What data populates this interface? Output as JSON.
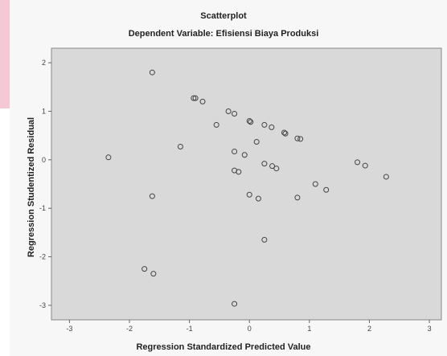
{
  "chart_data": {
    "type": "scatter",
    "title": "Scatterplot",
    "subtitle": "Dependent Variable: Efisiensi Biaya Produksi",
    "xlabel": "Regression Standardized Predicted Value",
    "ylabel": "Regression Studentized Residual",
    "xlim": [
      -3.3,
      3.2
    ],
    "ylim": [
      -3.3,
      2.3
    ],
    "xticks": [
      -3,
      -2,
      -1,
      0,
      1,
      2,
      3
    ],
    "yticks": [
      -3,
      -2,
      -1,
      0,
      1,
      2
    ],
    "grid": false,
    "colors": {
      "plot_bg": "#d9d9d9",
      "marker": "#444444",
      "outer_bg": "#f7f7f7",
      "band": "#f4c9d5"
    },
    "points": [
      {
        "x": -2.35,
        "y": 0.05
      },
      {
        "x": -1.62,
        "y": 1.8
      },
      {
        "x": -1.62,
        "y": -0.75
      },
      {
        "x": -1.75,
        "y": -2.25
      },
      {
        "x": -1.6,
        "y": -2.35
      },
      {
        "x": -1.15,
        "y": 0.27
      },
      {
        "x": -0.93,
        "y": 1.27
      },
      {
        "x": -0.9,
        "y": 1.27
      },
      {
        "x": -0.78,
        "y": 1.2
      },
      {
        "x": -0.55,
        "y": 0.72
      },
      {
        "x": -0.35,
        "y": 1.0
      },
      {
        "x": -0.25,
        "y": 0.95
      },
      {
        "x": -0.25,
        "y": 0.17
      },
      {
        "x": -0.25,
        "y": -0.22
      },
      {
        "x": -0.18,
        "y": -0.25
      },
      {
        "x": -0.08,
        "y": 0.1
      },
      {
        "x": 0.0,
        "y": 0.8
      },
      {
        "x": 0.02,
        "y": 0.78
      },
      {
        "x": 0.0,
        "y": -0.72
      },
      {
        "x": 0.12,
        "y": 0.37
      },
      {
        "x": 0.15,
        "y": -0.8
      },
      {
        "x": 0.25,
        "y": 0.72
      },
      {
        "x": 0.25,
        "y": -0.08
      },
      {
        "x": 0.37,
        "y": 0.67
      },
      {
        "x": 0.38,
        "y": -0.13
      },
      {
        "x": 0.45,
        "y": -0.18
      },
      {
        "x": 0.58,
        "y": 0.56
      },
      {
        "x": 0.6,
        "y": 0.54
      },
      {
        "x": 0.8,
        "y": 0.44
      },
      {
        "x": 0.85,
        "y": 0.43
      },
      {
        "x": 0.8,
        "y": -0.78
      },
      {
        "x": 1.1,
        "y": -0.5
      },
      {
        "x": 1.28,
        "y": -0.62
      },
      {
        "x": 1.8,
        "y": -0.05
      },
      {
        "x": 1.93,
        "y": -0.12
      },
      {
        "x": 2.28,
        "y": -0.35
      },
      {
        "x": 0.25,
        "y": -1.65
      },
      {
        "x": -0.25,
        "y": -2.97
      }
    ]
  }
}
